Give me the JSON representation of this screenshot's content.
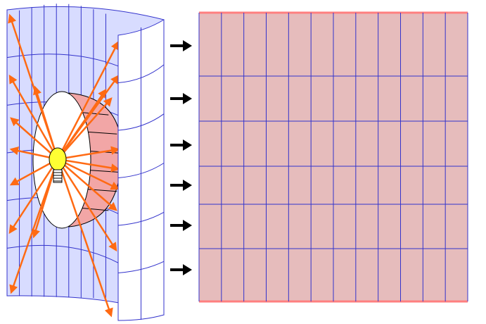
{
  "diagram": {
    "kind": "cylindrical-projection-illustration",
    "colors": {
      "cylinder_fill": "#d8dcff",
      "cylinder_front_fill": "#ffffff",
      "grid_line": "#3333cc",
      "ray": "#ff6a13",
      "bulb": "#ffff33",
      "globe_back": "#f2a6a6",
      "unrolled_map_fill": "#e6bcbc",
      "unrolled_map_edge": "#ff7f7f",
      "arrow": "#000000"
    },
    "cylinder": {
      "back_columns": 9,
      "front_columns": 2,
      "rows": 6
    },
    "globe": {
      "meridians": 5,
      "parallels": 6
    },
    "light_source": {
      "icon": "light-bulb-icon"
    },
    "rays": {
      "count": 19
    },
    "transfer_arrows": {
      "count": 6,
      "direction": "right"
    },
    "unrolled_map": {
      "columns": 12,
      "row_line_count": 5
    }
  }
}
